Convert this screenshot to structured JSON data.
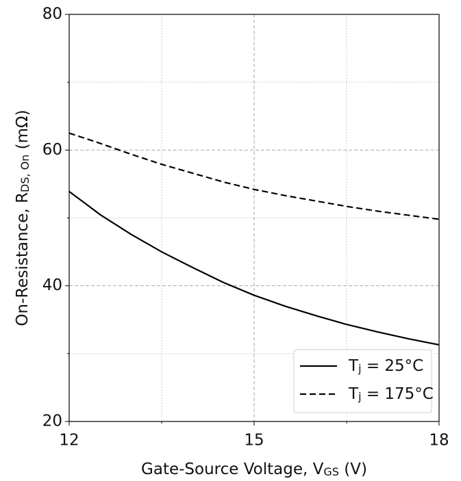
{
  "chart_data": {
    "type": "line",
    "xlabel": [
      "Gate-Source Voltage, V",
      "GS",
      " (V)"
    ],
    "ylabel": [
      "On-Resistance, R",
      "DS, On",
      " (mΩ)"
    ],
    "x": [
      12,
      12.5,
      13,
      13.5,
      14,
      14.5,
      15,
      15.5,
      16,
      16.5,
      17,
      17.5,
      18
    ],
    "series": [
      {
        "name": [
          "T",
          "j",
          " = 25°C"
        ],
        "color": "#000000",
        "dash": "solid",
        "values": [
          53.9,
          50.5,
          47.6,
          45.0,
          42.7,
          40.5,
          38.6,
          37.0,
          35.6,
          34.3,
          33.2,
          32.2,
          31.3
        ]
      },
      {
        "name": [
          "T",
          "j",
          " = 175°C"
        ],
        "color": "#000000",
        "dash": "dashed",
        "values": [
          62.5,
          61.0,
          59.4,
          57.9,
          56.6,
          55.3,
          54.2,
          53.3,
          52.5,
          51.7,
          51.0,
          50.4,
          49.8
        ]
      }
    ],
    "xlim": [
      12,
      18
    ],
    "xticks": [
      12,
      15,
      18
    ],
    "minor_xticks": [
      13.5,
      16.5
    ],
    "ylim": [
      20,
      80
    ],
    "yticks": [
      20,
      40,
      60,
      80
    ],
    "minor_yticks": [
      30,
      50,
      70
    ],
    "grid": true,
    "legend": "lower right"
  }
}
